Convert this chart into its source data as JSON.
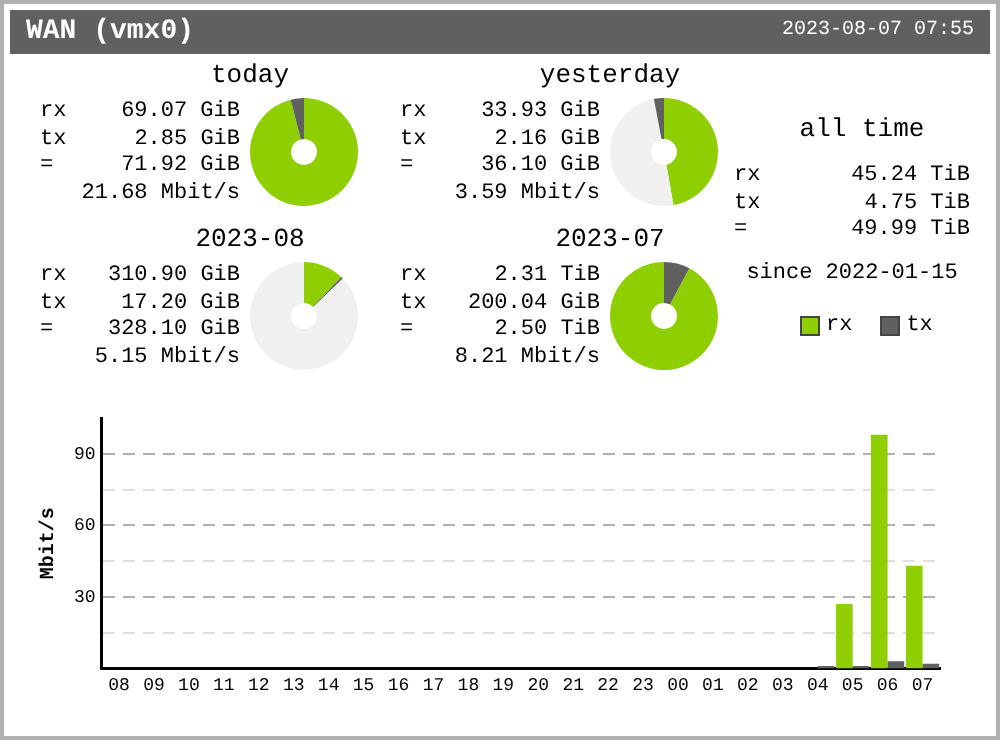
{
  "chart_data": [
    {
      "type": "other",
      "title": "WAN (vmx0)",
      "annotations": [
        "2023-08-07 07:55"
      ]
    },
    {
      "type": "donut",
      "title": "today",
      "categories": [
        null,
        null,
        null
      ],
      "values": [
        96.04,
        3.96,
        0
      ],
      "colors": [
        "#8fce00",
        "#606060",
        "#f0f0f0"
      ],
      "annotations": [
        "rx",
        "69.07 GiB",
        "tx",
        "2.85 GiB",
        "=",
        "71.92 GiB",
        "21.68 Mbit/s"
      ]
    },
    {
      "type": "donut",
      "title": "yesterday",
      "categories": [
        null,
        null,
        null
      ],
      "values": [
        47.18,
        49.82,
        3.0
      ],
      "colors": [
        "#8fce00",
        "#f0f0f0",
        "#606060"
      ],
      "annotations": [
        "rx",
        "33.93 GiB",
        "tx",
        "2.16 GiB",
        "=",
        "36.10 GiB",
        "3.59 Mbit/s"
      ]
    },
    {
      "type": "other",
      "title": "all time",
      "annotations": [
        "rx",
        "45.24 TiB",
        "tx",
        "4.75 TiB",
        "=",
        "49.99 TiB",
        "since 2022-01-15"
      ]
    },
    {
      "type": "donut",
      "title": "2023-08",
      "categories": [
        null,
        null,
        null
      ],
      "values": [
        12.14,
        0.67,
        87.19
      ],
      "colors": [
        "#8fce00",
        "#606060",
        "#f0f0f0"
      ],
      "annotations": [
        "rx",
        "310.90 GiB",
        "tx",
        "17.20 GiB",
        "=",
        "328.10 GiB",
        "5.15 Mbit/s"
      ]
    },
    {
      "type": "donut",
      "title": "2023-07",
      "categories": [
        null,
        null,
        null
      ],
      "values": [
        7.81,
        92.19,
        0
      ],
      "colors": [
        "#606060",
        "#8fce00",
        "#f0f0f0"
      ],
      "annotations": [
        "rx",
        "2.31 TiB",
        "tx",
        "200.04 GiB",
        "=",
        "2.50 TiB",
        "8.21 Mbit/s"
      ]
    },
    {
      "type": "bar",
      "ylabel": "Mbit/s",
      "categories": [
        "08",
        "09",
        "10",
        "11",
        "12",
        "13",
        "14",
        "15",
        "16",
        "17",
        "18",
        "19",
        "20",
        "21",
        "22",
        "23",
        "00",
        "01",
        "02",
        "03",
        "04",
        "05",
        "06",
        "07"
      ],
      "series": [
        {
          "name": "rx",
          "color": "#8fce00",
          "values": [
            0,
            0,
            0,
            0,
            0,
            0,
            0,
            0,
            0,
            0,
            0,
            0,
            0,
            0,
            0,
            0,
            0,
            0,
            0,
            0,
            0,
            27,
            98,
            43
          ]
        },
        {
          "name": "tx",
          "color": "#606060",
          "values": [
            0,
            0,
            0,
            0,
            0,
            0,
            0,
            0,
            0,
            0,
            0,
            0,
            0,
            0,
            0,
            0,
            0,
            0,
            0,
            0,
            1,
            1,
            3,
            2
          ]
        }
      ],
      "ylim": [
        0,
        105
      ],
      "yticks": [
        {
          "value": 15,
          "label": null
        },
        30,
        {
          "value": 45,
          "label": null
        },
        60,
        {
          "value": 75,
          "label": null
        },
        90
      ],
      "grid": "y",
      "legend": "top right"
    }
  ]
}
